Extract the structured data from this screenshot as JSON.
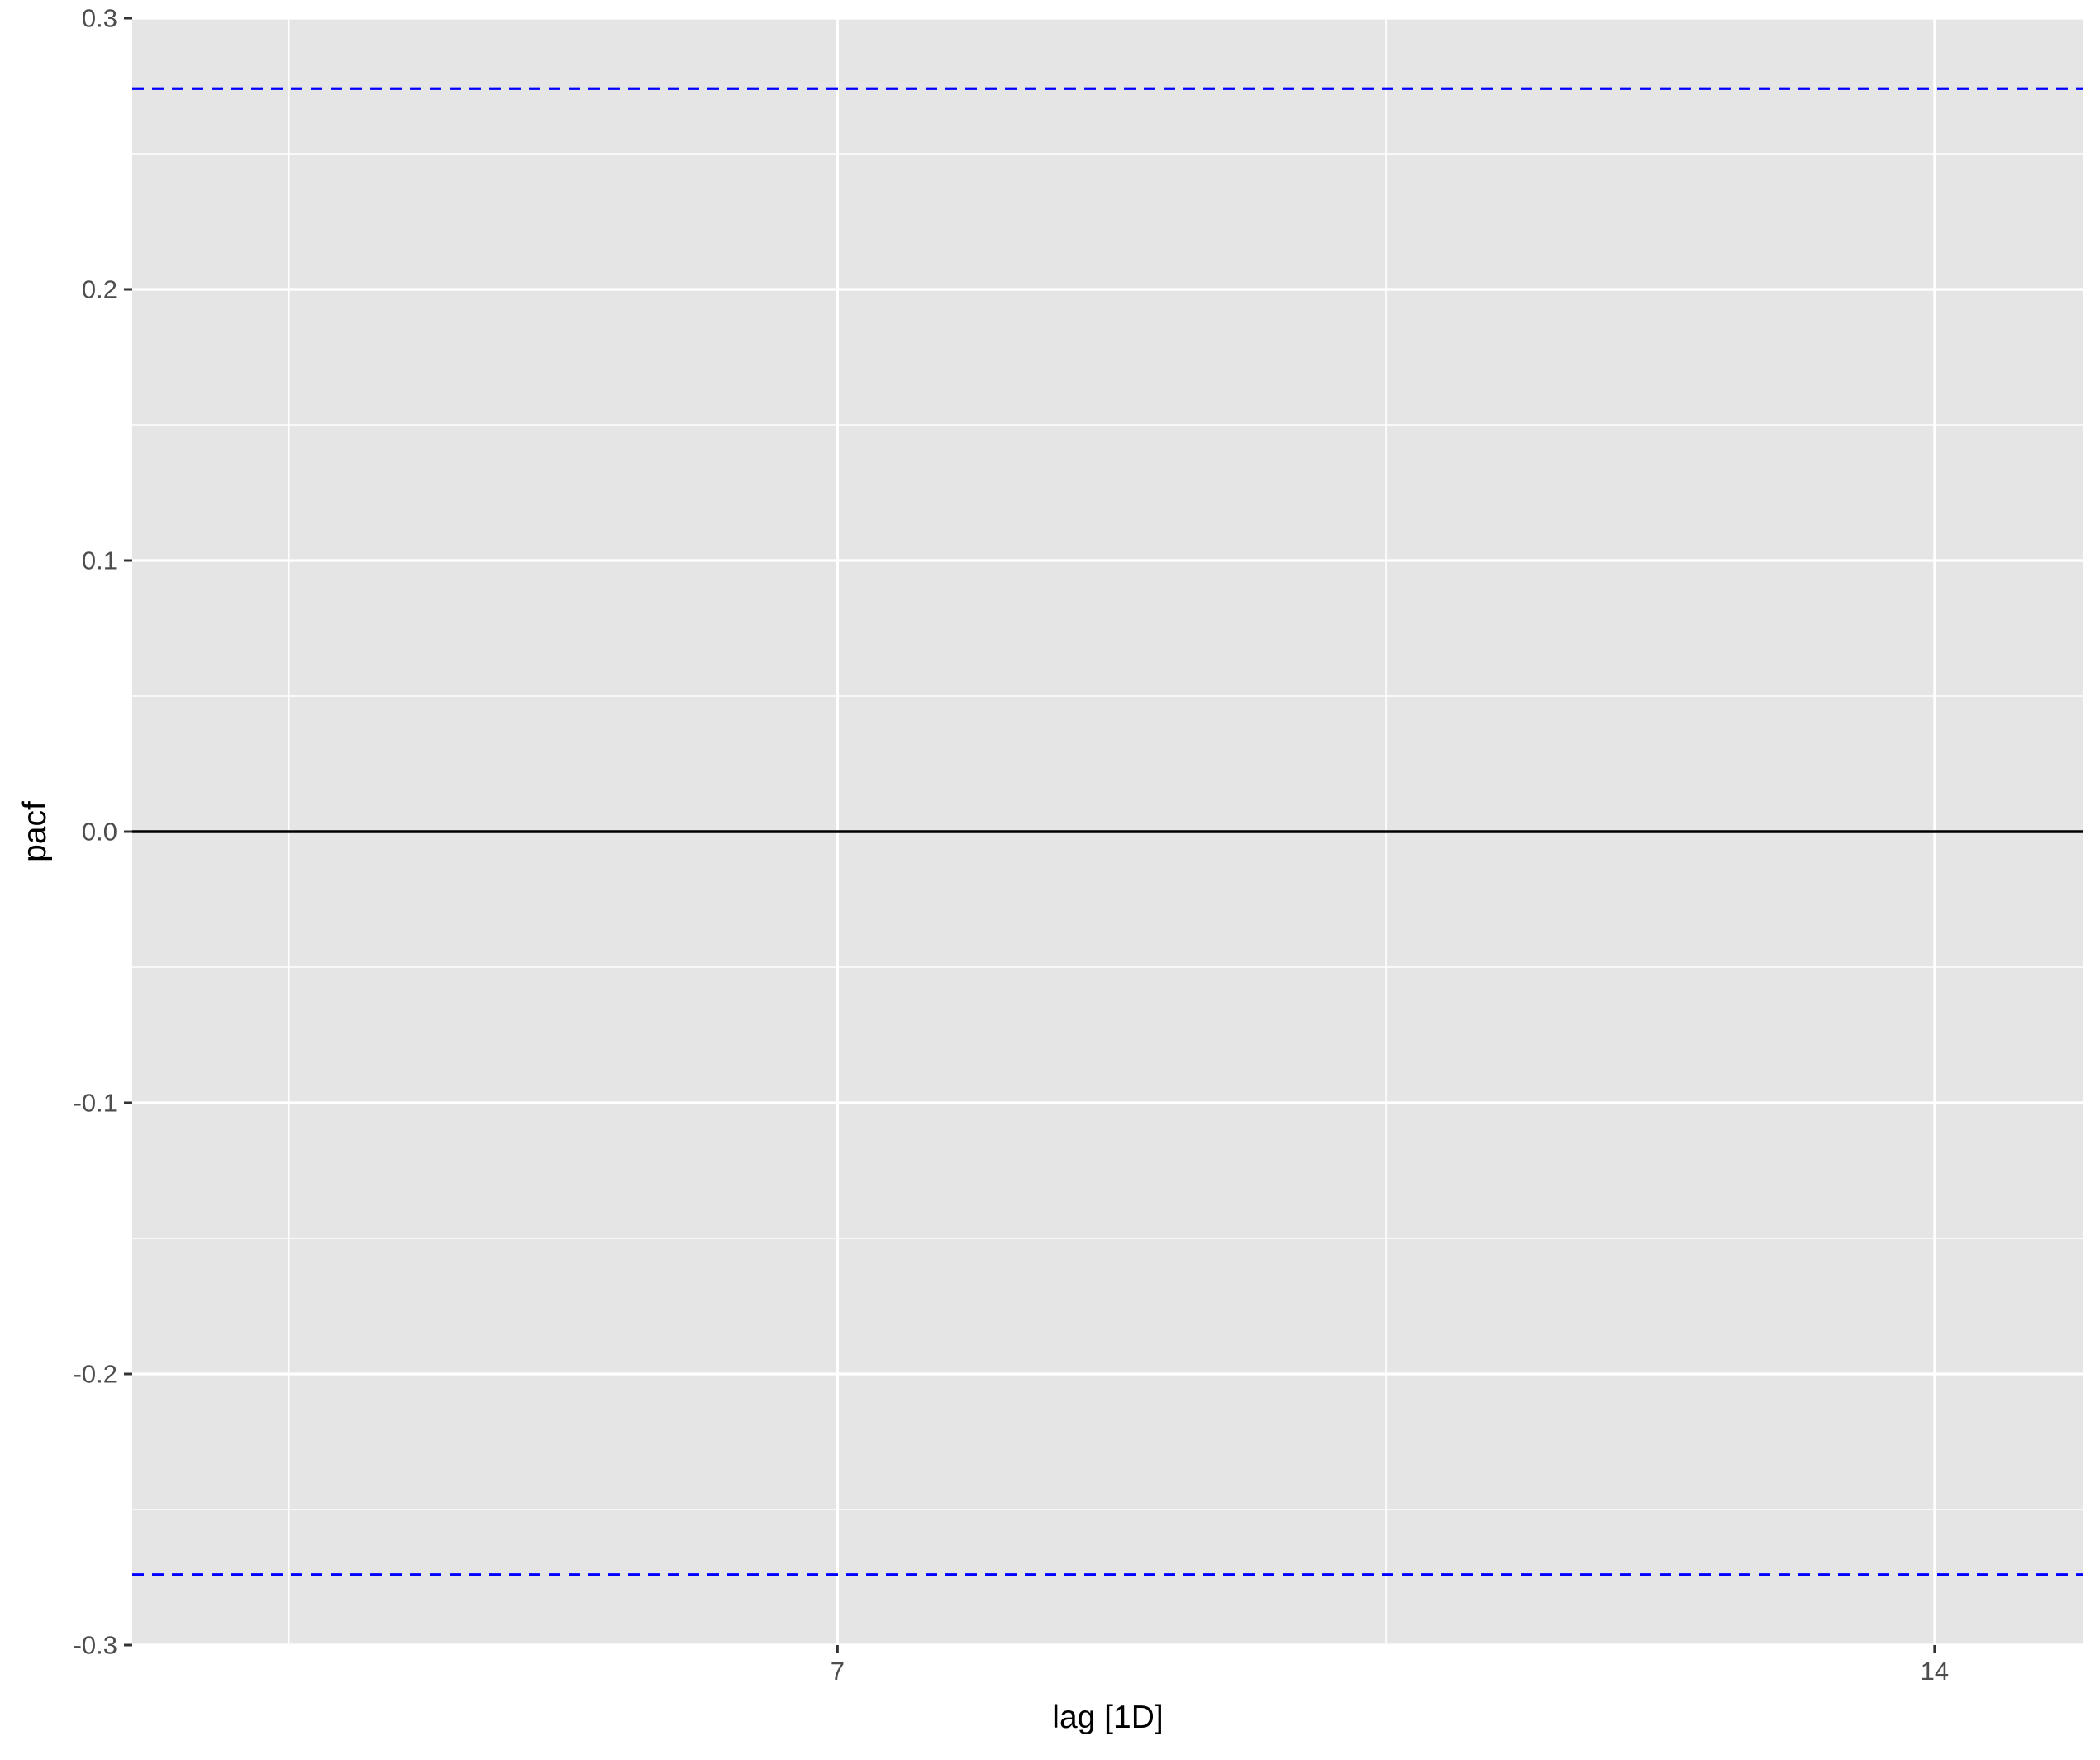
{
  "chart_data": {
    "type": "bar",
    "title": "",
    "xlabel": "lag [1D]",
    "ylabel": "pacf",
    "xlim": [
      2.5,
      14.95
    ],
    "ylim": [
      -0.3,
      0.3
    ],
    "x_ticks": [
      7,
      14
    ],
    "x_tick_labels": [
      "7",
      "14"
    ],
    "x_minor_gridlines": [
      3.5,
      10.5
    ],
    "y_ticks": [
      -0.3,
      -0.2,
      -0.1,
      0.0,
      0.1,
      0.2,
      0.3
    ],
    "y_tick_labels": [
      "-0.3",
      "-0.2",
      "-0.1",
      "0.0",
      "0.1",
      "0.2",
      "0.3"
    ],
    "y_minor_gridlines": [
      -0.25,
      -0.15,
      -0.05,
      0.05,
      0.15,
      0.25
    ],
    "grid": true,
    "zero_line": 0.0,
    "confidence_bounds": [
      0.274,
      -0.274
    ],
    "series": [],
    "colors": {
      "panel_background": "#e5e5e5",
      "gridline": "#ffffff",
      "zero_line": "#000000",
      "confidence_bound": "#0000ff",
      "tick_label": "#4d4d4d",
      "axis_title": "#000000"
    }
  }
}
